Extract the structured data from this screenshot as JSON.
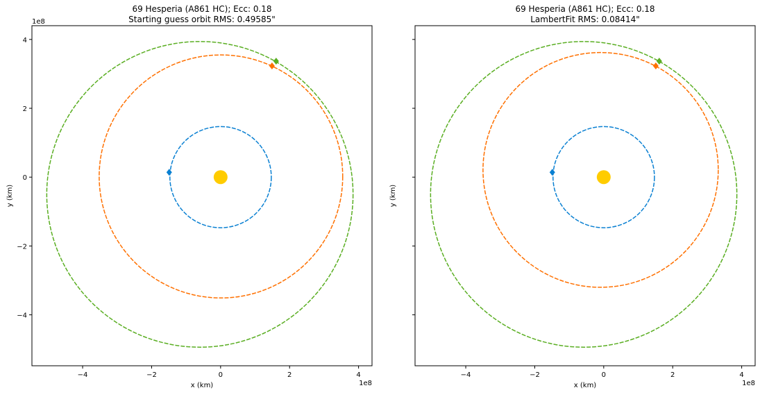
{
  "colors": {
    "earth": "#0a80d2",
    "fit": "#ff7000",
    "object": "#5aae22",
    "sun": "#ffcc00"
  },
  "chart_data": [
    {
      "type": "line",
      "title_line1": "69 Hesperia (A861 HC); Ecc: 0.18",
      "title_line2": "Starting guess orbit RMS: 0.49585\"",
      "xlabel": "x (km)",
      "ylabel": "y (km)",
      "x_offset_label": "1e8",
      "y_offset_label": "1e8",
      "xlim": [
        -5.47,
        4.39
      ],
      "ylim": [
        -5.48,
        4.4
      ],
      "xticks": [
        -4,
        -2,
        0,
        2,
        4
      ],
      "yticks": [
        -4,
        -2,
        0,
        2,
        4
      ],
      "xtick_labels": [
        "−4",
        "−2",
        "0",
        "2",
        "4"
      ],
      "ytick_labels": [
        "−4",
        "−2",
        "0",
        "2",
        "4"
      ],
      "show_ytick_labels": true,
      "grid": false,
      "orbits": [
        {
          "color_key": "earth",
          "center": [
            0,
            0
          ],
          "radius": 1.47
        },
        {
          "color_key": "fit",
          "center": [
            0.01,
            0.02
          ],
          "radius": 3.53
        },
        {
          "color_key": "object",
          "center": [
            -0.6,
            -0.5
          ],
          "radius": 4.44
        }
      ],
      "markers": [
        {
          "color_key": "earth",
          "x": -1.49,
          "y": 0.14
        },
        {
          "color_key": "fit",
          "x": 1.49,
          "y": 3.23
        },
        {
          "color_key": "object",
          "x": 1.61,
          "y": 3.37
        }
      ],
      "sun": {
        "x": 0,
        "y": 0
      }
    },
    {
      "type": "line",
      "title_line1": "69 Hesperia (A861 HC); Ecc: 0.18",
      "title_line2": "LambertFit RMS: 0.08414\"",
      "xlabel": "x (km)",
      "ylabel": "y (km)",
      "x_offset_label": "1e8",
      "xlim": [
        -5.47,
        4.39
      ],
      "ylim": [
        -5.48,
        4.4
      ],
      "xticks": [
        -4,
        -2,
        0,
        2,
        4
      ],
      "yticks": [
        -4,
        -2,
        0,
        2,
        4
      ],
      "xtick_labels": [
        "−4",
        "−2",
        "0",
        "2",
        "4"
      ],
      "show_ytick_labels": false,
      "grid": false,
      "orbits": [
        {
          "color_key": "earth",
          "center": [
            0,
            0
          ],
          "radius": 1.47
        },
        {
          "color_key": "fit",
          "center": [
            -0.09,
            0.21
          ],
          "radius": 3.41
        },
        {
          "color_key": "object",
          "center": [
            -0.58,
            -0.5
          ],
          "radius": 4.44
        }
      ],
      "markers": [
        {
          "color_key": "earth",
          "x": -1.49,
          "y": 0.14
        },
        {
          "color_key": "fit",
          "x": 1.51,
          "y": 3.23
        },
        {
          "color_key": "object",
          "x": 1.61,
          "y": 3.37
        }
      ],
      "sun": {
        "x": 0,
        "y": 0
      }
    }
  ]
}
